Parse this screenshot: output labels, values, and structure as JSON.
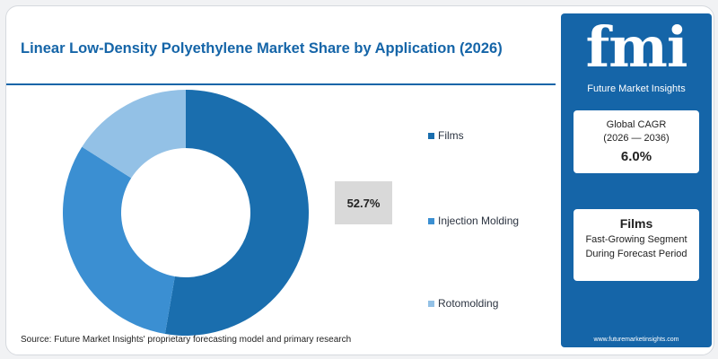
{
  "title": "Linear Low-Density Polyethylene Market Share by Application (2026)",
  "source": "Source: Future Market Insights' proprietary forecasting model and primary research",
  "highlight_value": "52.7%",
  "sidebar": {
    "logo": "fmi",
    "logo_subtitle": "Future Market Insights",
    "cagr_label": "Global CAGR",
    "cagr_period": "(2026 — 2036)",
    "cagr_value": "6.0%",
    "segment_name": "Films",
    "segment_line1": "Fast-Growing Segment",
    "segment_line2": "During Forecast Period",
    "website": "www.futuremarketinsights.com"
  },
  "colors": {
    "brand": "#1565a8",
    "films": "#1a6eae",
    "injection": "#3b8fd2",
    "rotomolding": "#93c1e6"
  },
  "chart_data": {
    "type": "pie",
    "title": "Linear Low-Density Polyethylene Market Share by Application (2026)",
    "donut": true,
    "legend_position": "right",
    "series": [
      {
        "name": "Films",
        "value": 52.7,
        "color": "#1a6eae"
      },
      {
        "name": "Injection Molding",
        "value": 31.3,
        "color": "#3b8fd2"
      },
      {
        "name": "Rotomolding",
        "value": 16.0,
        "color": "#93c1e6"
      }
    ]
  }
}
